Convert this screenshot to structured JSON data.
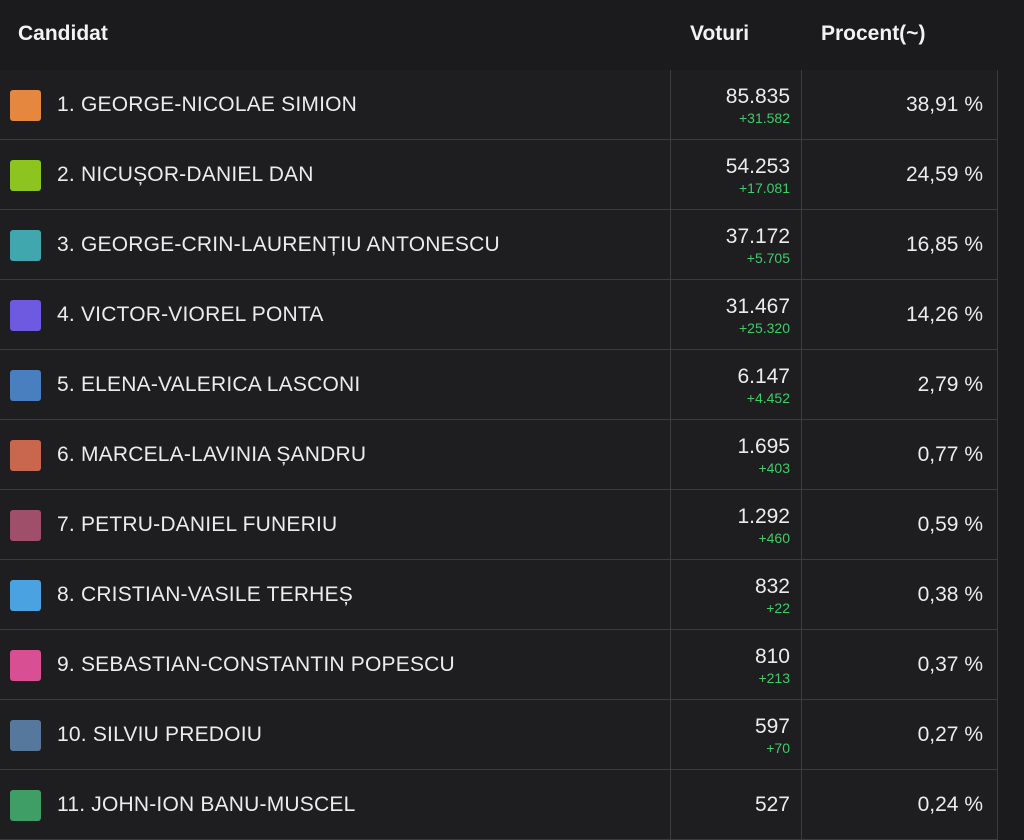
{
  "header": {
    "candidate": "Candidat",
    "votes": "Voturi",
    "percent": "Procent(~)"
  },
  "rows": [
    {
      "name": "1. GEORGE-NICOLAE SIMION",
      "votes": "85.835",
      "delta": "+31.582",
      "percent": "38,91 %",
      "color": "#e5873f"
    },
    {
      "name": "2. NICUȘOR-DANIEL DAN",
      "votes": "54.253",
      "delta": "+17.081",
      "percent": "24,59 %",
      "color": "#8ec41f"
    },
    {
      "name": "3. GEORGE-CRIN-LAURENȚIU ANTONESCU",
      "votes": "37.172",
      "delta": "+5.705",
      "percent": "16,85 %",
      "color": "#3fa7ad"
    },
    {
      "name": "4. VICTOR-VIOREL PONTA",
      "votes": "31.467",
      "delta": "+25.320",
      "percent": "14,26 %",
      "color": "#6d5ae0"
    },
    {
      "name": "5. ELENA-VALERICA LASCONI",
      "votes": "6.147",
      "delta": "+4.452",
      "percent": "2,79 %",
      "color": "#4a7fbf"
    },
    {
      "name": "6. MARCELA-LAVINIA ȘANDRU",
      "votes": "1.695",
      "delta": "+403",
      "percent": "0,77 %",
      "color": "#c9664e"
    },
    {
      "name": "7. PETRU-DANIEL FUNERIU",
      "votes": "1.292",
      "delta": "+460",
      "percent": "0,59 %",
      "color": "#a04f6a"
    },
    {
      "name": "8. CRISTIAN-VASILE TERHEȘ",
      "votes": "832",
      "delta": "+22",
      "percent": "0,38 %",
      "color": "#4aa3e0"
    },
    {
      "name": "9. SEBASTIAN-CONSTANTIN POPESCU",
      "votes": "810",
      "delta": "+213",
      "percent": "0,37 %",
      "color": "#d84f94"
    },
    {
      "name": "10. SILVIU PREDOIU",
      "votes": "597",
      "delta": "+70",
      "percent": "0,27 %",
      "color": "#56789c"
    },
    {
      "name": "11. JOHN-ION BANU-MUSCEL",
      "votes": "527",
      "delta": "",
      "percent": "0,24 %",
      "color": "#3e9e65"
    }
  ]
}
